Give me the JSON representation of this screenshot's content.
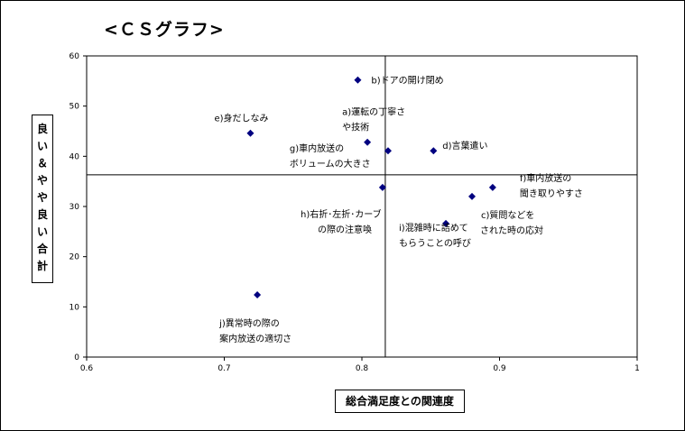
{
  "chart_data": {
    "type": "scatter",
    "title": "<ＣＳグラフ>",
    "xlabel": "総合満足度との関連度",
    "ylabel": "良い＆やや良い合計",
    "xlim": [
      0.6,
      1.0
    ],
    "ylim": [
      0,
      60
    ],
    "xticks": [
      "0.6",
      "0.7",
      "0.8",
      "0.9",
      "1"
    ],
    "yticks": [
      "0",
      "10",
      "20",
      "30",
      "40",
      "50",
      "60"
    ],
    "grid": false,
    "marker_color": "#000080",
    "reference_lines": {
      "x": 0.817,
      "y": 36.3
    },
    "points": [
      {
        "x": 0.797,
        "y": 55.2,
        "label": [
          "b)ドアの開け閉め"
        ]
      },
      {
        "x": 0.719,
        "y": 44.6,
        "label": [
          "e)身だしなみ"
        ]
      },
      {
        "x": 0.804,
        "y": 42.8,
        "label": [
          "a)運転の丁寧さ",
          "や技術"
        ]
      },
      {
        "x": 0.819,
        "y": 41.1,
        "label": []
      },
      {
        "x": 0.852,
        "y": 41.1,
        "label": [
          "d)言葉遣い"
        ]
      },
      {
        "x": 0.815,
        "y": 33.8,
        "label": [
          "g)車内放送の",
          "ボリュームの大きさ"
        ]
      },
      {
        "x": 0.895,
        "y": 33.8,
        "label": [
          "f)車内放送の",
          "聞き取りやすさ"
        ]
      },
      {
        "x": 0.88,
        "y": 32.0,
        "label": []
      },
      {
        "x": 0.861,
        "y": 26.6,
        "label": [
          "i)混雑時に詰めて",
          "もらうことの呼び"
        ]
      },
      {
        "x": 0.724,
        "y": 12.4,
        "label": [
          "j)異常時の際の",
          "案内放送の適切さ"
        ]
      }
    ],
    "floating_labels": [
      {
        "text": [
          "h)右折･左折･カーブ",
          "の際の注意喚"
        ]
      },
      {
        "text": [
          "c)質問などを",
          "された時の応対"
        ]
      }
    ]
  }
}
